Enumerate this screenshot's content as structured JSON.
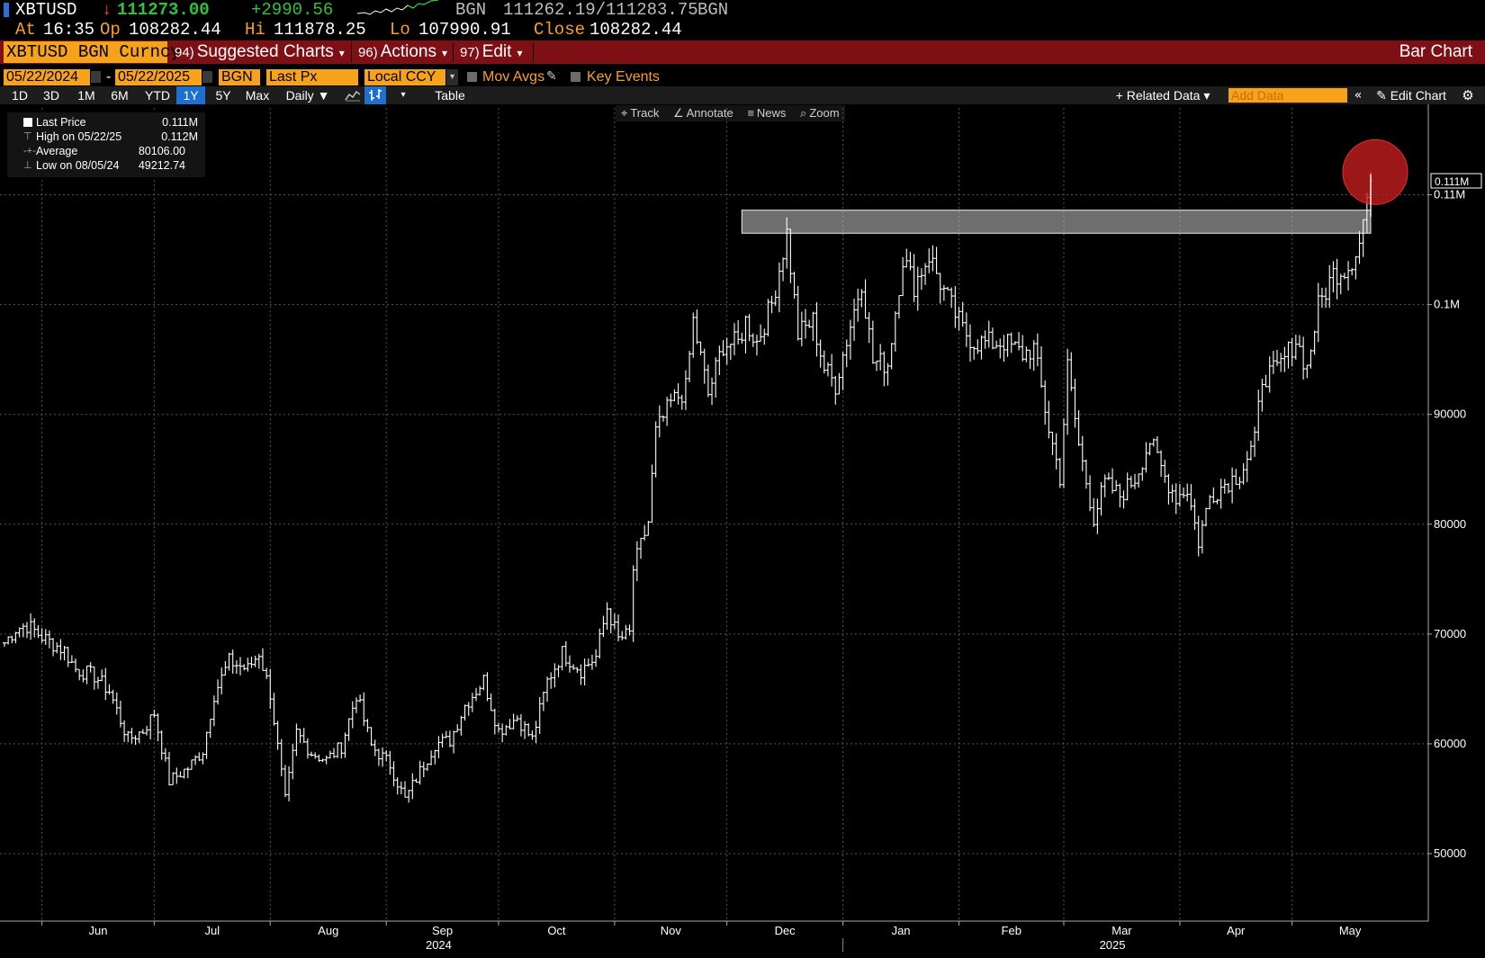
{
  "quote": {
    "ticker": "XBTUSD",
    "arrow": "↓",
    "last": "111273.00",
    "change": "+2990.56",
    "source": "BGN",
    "bid_ask": "111262.19/111283.75",
    "source2": "BGN",
    "at_label": "At",
    "at_time": "16:35",
    "op_label": "Op",
    "op": "108282.44",
    "hi_label": "Hi",
    "hi": "111878.25",
    "lo_label": "Lo",
    "lo": "107990.91",
    "close_label": "Close",
    "close": "108282.44"
  },
  "menu": {
    "security": "XBTUSD BGN Curncy",
    "suggested_num": "94)",
    "suggested": "Suggested Charts",
    "actions_num": "96)",
    "actions": "Actions",
    "edit_num": "97)",
    "edit": "Edit",
    "chart_type": "Bar Chart"
  },
  "params": {
    "start_date": "05/22/2024",
    "dash": "-",
    "end_date": "05/22/2025",
    "source": "BGN",
    "field": "Last Px",
    "currency": "Local CCY",
    "mov_avgs": "Mov Avgs",
    "key_events": "Key Events"
  },
  "toolbar": {
    "periods": [
      "1D",
      "3D",
      "1M",
      "6M",
      "YTD",
      "1Y",
      "5Y",
      "Max"
    ],
    "selected_period": "1Y",
    "frequency": "Daily ▼",
    "table": "Table",
    "related_data": "+ Related Data ▾",
    "add_data_placeholder": "Add Data",
    "edit_chart": "Edit Chart"
  },
  "chart_tools": {
    "track": "Track",
    "annotate": "Annotate",
    "news": "News",
    "zoom": "Zoom"
  },
  "legend": {
    "last_price_label": "Last Price",
    "last_price_value": "0.111M",
    "high_label": "High on 05/22/25",
    "high_value": "0.112M",
    "average_label": "Average",
    "average_value": "80106.00",
    "low_label": "Low on 08/05/24",
    "low_value": "49212.74"
  },
  "colors": {
    "accent_orange": "#f7a21b",
    "menu_red": "#7e0f14",
    "select_blue": "#1f6fd1",
    "up_green": "#2ec33c",
    "down_red": "#ff3b30",
    "bar_white": "#ffffff",
    "highlight_circle": "#c81e1e"
  },
  "chart_data": {
    "type": "bar",
    "style": "OHLC",
    "series": [
      {
        "name": "Last Price",
        "anchors": [
          [
            "2024-05-22",
            69200
          ],
          [
            "2024-05-25",
            70500
          ],
          [
            "2024-05-28",
            70800
          ],
          [
            "2024-06-02",
            69500
          ],
          [
            "2024-06-07",
            68500
          ],
          [
            "2024-06-10",
            66800
          ],
          [
            "2024-06-15",
            66200
          ],
          [
            "2024-06-19",
            64800
          ],
          [
            "2024-06-24",
            60400
          ],
          [
            "2024-06-28",
            61200
          ],
          [
            "2024-07-01",
            62800
          ],
          [
            "2024-07-05",
            56600
          ],
          [
            "2024-07-10",
            57800
          ],
          [
            "2024-07-14",
            59400
          ],
          [
            "2024-07-17",
            64500
          ],
          [
            "2024-07-21",
            67500
          ],
          [
            "2024-07-26",
            66800
          ],
          [
            "2024-07-29",
            68300
          ],
          [
            "2024-08-01",
            64600
          ],
          [
            "2024-08-05",
            54800
          ],
          [
            "2024-08-08",
            61000
          ],
          [
            "2024-08-12",
            59200
          ],
          [
            "2024-08-16",
            58500
          ],
          [
            "2024-08-20",
            59800
          ],
          [
            "2024-08-24",
            64500
          ],
          [
            "2024-08-28",
            59800
          ],
          [
            "2024-09-02",
            58100
          ],
          [
            "2024-09-06",
            54900
          ],
          [
            "2024-09-10",
            57500
          ],
          [
            "2024-09-14",
            60000
          ],
          [
            "2024-09-18",
            60300
          ],
          [
            "2024-09-22",
            63500
          ],
          [
            "2024-09-27",
            65800
          ],
          [
            "2024-10-01",
            61200
          ],
          [
            "2024-10-06",
            62400
          ],
          [
            "2024-10-10",
            60400
          ],
          [
            "2024-10-14",
            65700
          ],
          [
            "2024-10-18",
            68300
          ],
          [
            "2024-10-23",
            66700
          ],
          [
            "2024-10-27",
            67900
          ],
          [
            "2024-10-30",
            72400
          ],
          [
            "2024-11-02",
            69500
          ],
          [
            "2024-11-05",
            70000
          ],
          [
            "2024-11-06",
            75900
          ],
          [
            "2024-11-10",
            80200
          ],
          [
            "2024-11-12",
            88300
          ],
          [
            "2024-11-16",
            91000
          ],
          [
            "2024-11-20",
            92300
          ],
          [
            "2024-11-22",
            98500
          ],
          [
            "2024-11-26",
            91800
          ],
          [
            "2024-11-30",
            96400
          ],
          [
            "2024-12-04",
            96500
          ],
          [
            "2024-12-06",
            98500
          ],
          [
            "2024-12-09",
            96600
          ],
          [
            "2024-12-13",
            100100
          ],
          [
            "2024-12-17",
            106500
          ],
          [
            "2024-12-20",
            97300
          ],
          [
            "2024-12-24",
            98500
          ],
          [
            "2024-12-27",
            94200
          ],
          [
            "2024-12-30",
            92700
          ],
          [
            "2025-01-02",
            96800
          ],
          [
            "2025-01-06",
            102200
          ],
          [
            "2025-01-09",
            94800
          ],
          [
            "2025-01-13",
            94600
          ],
          [
            "2025-01-17",
            104300
          ],
          [
            "2025-01-20",
            101800
          ],
          [
            "2025-01-24",
            104500
          ],
          [
            "2025-01-28",
            101200
          ],
          [
            "2025-02-02",
            97700
          ],
          [
            "2025-02-05",
            96600
          ],
          [
            "2025-02-09",
            96500
          ],
          [
            "2025-02-13",
            96600
          ],
          [
            "2025-02-18",
            95500
          ],
          [
            "2025-02-21",
            96000
          ],
          [
            "2025-02-25",
            88700
          ],
          [
            "2025-02-28",
            84300
          ],
          [
            "2025-03-02",
            94300
          ],
          [
            "2025-03-05",
            87200
          ],
          [
            "2025-03-09",
            80600
          ],
          [
            "2025-03-12",
            83700
          ],
          [
            "2025-03-16",
            82600
          ],
          [
            "2025-03-20",
            84200
          ],
          [
            "2025-03-24",
            87600
          ],
          [
            "2025-03-28",
            84300
          ],
          [
            "2025-03-31",
            82500
          ],
          [
            "2025-04-03",
            83200
          ],
          [
            "2025-04-06",
            78400
          ],
          [
            "2025-04-09",
            82500
          ],
          [
            "2025-04-13",
            83700
          ],
          [
            "2025-04-17",
            84600
          ],
          [
            "2025-04-21",
            87500
          ],
          [
            "2025-04-23",
            93400
          ],
          [
            "2025-04-27",
            94000
          ],
          [
            "2025-05-02",
            96800
          ],
          [
            "2025-05-05",
            94200
          ],
          [
            "2025-05-08",
            99800
          ],
          [
            "2025-05-12",
            102800
          ],
          [
            "2025-05-16",
            103500
          ],
          [
            "2025-05-19",
            105600
          ],
          [
            "2025-05-21",
            109700
          ],
          [
            "2025-05-22",
            111273
          ]
        ]
      }
    ],
    "y_ticks": [
      "50000",
      "60000",
      "70000",
      "80000",
      "90000",
      "0.1M",
      "0.11M"
    ],
    "y_tick_values": [
      50000,
      60000,
      70000,
      80000,
      90000,
      100000,
      110000
    ],
    "last_price_tag": "0.111M",
    "ylim": [
      45000,
      117500
    ],
    "x_months": [
      "Jun",
      "Jul",
      "Aug",
      "Sep",
      "Oct",
      "Nov",
      "Dec",
      "Jan",
      "Feb",
      "Mar",
      "Apr",
      "May"
    ],
    "x_month_dates": [
      "2024-06-01",
      "2024-07-01",
      "2024-08-01",
      "2024-09-01",
      "2024-10-01",
      "2024-11-01",
      "2024-12-01",
      "2025-01-01",
      "2025-02-01",
      "2025-03-01",
      "2025-04-01",
      "2025-05-01"
    ],
    "x_years": [
      "2024",
      "2025"
    ],
    "x_range": [
      "2024-05-22",
      "2025-05-22"
    ],
    "resistance_zone": {
      "y_low": 106500,
      "y_high": 108600,
      "x_start": "2024-12-05",
      "x_end": "2025-05-22"
    },
    "highlight": {
      "x": "2025-05-22",
      "y": 111900
    },
    "grid": true,
    "legend_position": "top-left"
  }
}
